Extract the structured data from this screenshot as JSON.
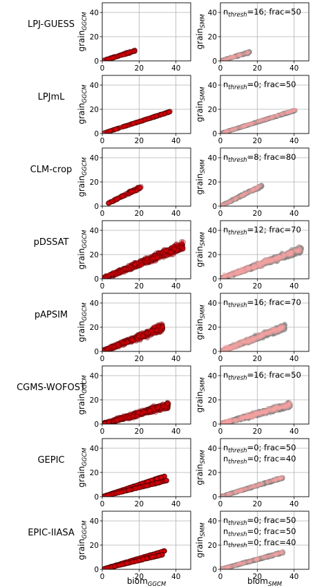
{
  "figure": {
    "x_ticks": [
      "0",
      "20",
      "40"
    ],
    "y_ticks": [
      "0",
      "20",
      "40"
    ],
    "x_range": [
      0,
      48
    ],
    "y_range": [
      0,
      48
    ],
    "ylabel_left": "grain",
    "ylabel_left_sub": "GGCM",
    "ylabel_right": "grain",
    "ylabel_right_sub": "SMM",
    "xlabel_left": "biom",
    "xlabel_left_sub": "GGCM",
    "xlabel_right": "biom",
    "xlabel_right_sub": "SMM",
    "colors": {
      "ggcm_points": "#e8000b",
      "ggcm_edge": "#3a0000",
      "smm_points": "#8a8a8a",
      "smm_overlay": "#f4a3a3",
      "grid": "#b0b0b0"
    }
  },
  "chart_data": [
    {
      "type": "scatter",
      "model": "LPJ-GUESS",
      "panel": "GGCM",
      "bands": [
        {
          "x_min": 0,
          "x_max": 18,
          "slope": 0.47,
          "spread": 1.2
        }
      ],
      "grid": true
    },
    {
      "type": "scatter",
      "model": "LPJ-GUESS",
      "panel": "SMM",
      "bands": [
        {
          "x_min": 0,
          "x_max": 16,
          "slope": 0.45,
          "spread": 1.3
        }
      ],
      "annotations": [
        {
          "n": "16",
          "frac": "50"
        }
      ],
      "grid": true
    },
    {
      "type": "scatter",
      "model": "LPJmL",
      "panel": "GGCM",
      "bands": [
        {
          "x_min": 0,
          "x_max": 37,
          "slope": 0.49,
          "spread": 0.6
        }
      ],
      "grid": true
    },
    {
      "type": "scatter",
      "model": "LPJmL",
      "panel": "SMM",
      "bands": [
        {
          "x_min": 0,
          "x_max": 41,
          "slope": 0.47,
          "spread": 0.8
        }
      ],
      "annotations": [
        {
          "n": "0",
          "frac": "50"
        }
      ],
      "grid": true
    },
    {
      "type": "scatter",
      "model": "CLM-crop",
      "panel": "GGCM",
      "bands": [
        {
          "x_min": 3,
          "x_max": 21,
          "slope": 0.75,
          "spread": 2.0
        }
      ],
      "grid": true
    },
    {
      "type": "scatter",
      "model": "CLM-crop",
      "panel": "SMM",
      "bands": [
        {
          "x_min": 0,
          "x_max": 23,
          "slope": 0.75,
          "spread": 2.0
        }
      ],
      "annotations": [
        {
          "n": "8",
          "frac": "80"
        }
      ],
      "grid": true
    },
    {
      "type": "scatter",
      "model": "pDSSAT",
      "panel": "GGCM",
      "bands": [
        {
          "x_min": 0,
          "x_max": 44,
          "slope": 0.62,
          "spread": 5.0
        }
      ],
      "grid": true
    },
    {
      "type": "scatter",
      "model": "pDSSAT",
      "panel": "SMM",
      "bands": [
        {
          "x_min": 0,
          "x_max": 44,
          "slope": 0.55,
          "spread": 4.0
        }
      ],
      "annotations": [
        {
          "n": "12",
          "frac": "70"
        }
      ],
      "grid": true
    },
    {
      "type": "scatter",
      "model": "pAPSIM",
      "panel": "GGCM",
      "bands": [
        {
          "x_min": 0,
          "x_max": 33,
          "slope": 0.6,
          "spread": 4.5
        }
      ],
      "grid": true
    },
    {
      "type": "scatter",
      "model": "pAPSIM",
      "panel": "SMM",
      "bands": [
        {
          "x_min": 0,
          "x_max": 35,
          "slope": 0.58,
          "spread": 4.0
        }
      ],
      "annotations": [
        {
          "n": "16",
          "frac": "70"
        }
      ],
      "grid": true
    },
    {
      "type": "scatter",
      "model": "CGMS-WOFOST",
      "panel": "GGCM",
      "bands": [
        {
          "x_min": 0,
          "x_max": 36,
          "slope": 0.43,
          "spread": 4.0
        }
      ],
      "grid": true
    },
    {
      "type": "scatter",
      "model": "CGMS-WOFOST",
      "panel": "SMM",
      "bands": [
        {
          "x_min": 0,
          "x_max": 38,
          "slope": 0.42,
          "spread": 3.5
        }
      ],
      "annotations": [
        {
          "n": "16",
          "frac": "50"
        }
      ],
      "grid": true
    },
    {
      "type": "scatter",
      "model": "GEPIC",
      "panel": "GGCM",
      "bands": [
        {
          "x_min": 0,
          "x_max": 34,
          "slope": 0.5,
          "spread": 0.6
        },
        {
          "x_min": 0,
          "x_max": 35,
          "slope": 0.38,
          "spread": 0.6
        }
      ],
      "grid": true
    },
    {
      "type": "scatter",
      "model": "GEPIC",
      "panel": "SMM",
      "bands": [
        {
          "x_min": 0,
          "x_max": 34,
          "slope": 0.46,
          "spread": 1.2
        }
      ],
      "annotations": [
        {
          "n": "0",
          "frac": "50"
        },
        {
          "n": "0",
          "frac": "40"
        }
      ],
      "grid": true
    },
    {
      "type": "scatter",
      "model": "EPIC-IIASA",
      "panel": "GGCM",
      "bands": [
        {
          "x_min": 0,
          "x_max": 34,
          "slope": 0.45,
          "spread": 0.6
        },
        {
          "x_min": 0,
          "x_max": 33,
          "slope": 0.37,
          "spread": 0.6
        }
      ],
      "grid": true
    },
    {
      "type": "scatter",
      "model": "EPIC-IIASA",
      "panel": "SMM",
      "bands": [
        {
          "x_min": 0,
          "x_max": 34,
          "slope": 0.41,
          "spread": 1.2
        }
      ],
      "annotations": [
        {
          "n": "0",
          "frac": "50"
        },
        {
          "n": "0",
          "frac": "50"
        },
        {
          "n": "0",
          "frac": "40"
        }
      ],
      "grid": true
    }
  ]
}
